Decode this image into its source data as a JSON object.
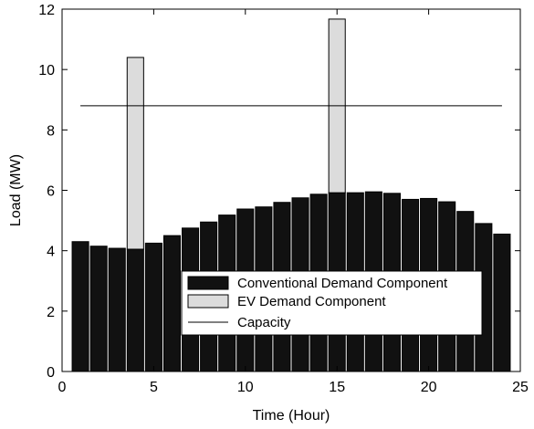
{
  "chart_data": {
    "type": "bar",
    "xlabel": "Time (Hour)",
    "ylabel": "Load (MW)",
    "xlim": [
      0,
      25
    ],
    "ylim": [
      0,
      12
    ],
    "xticks": [
      0,
      5,
      10,
      15,
      20,
      25
    ],
    "yticks": [
      0,
      2,
      4,
      6,
      8,
      10,
      12
    ],
    "x": [
      1,
      2,
      3,
      4,
      5,
      6,
      7,
      8,
      9,
      10,
      11,
      12,
      13,
      14,
      15,
      16,
      17,
      18,
      19,
      20,
      21,
      22,
      23,
      24
    ],
    "series": [
      {
        "name": "Conventional Demand Component",
        "color": "#111111",
        "values": [
          4.3,
          4.15,
          4.08,
          4.05,
          4.25,
          4.5,
          4.75,
          4.95,
          5.18,
          5.38,
          5.45,
          5.6,
          5.75,
          5.87,
          5.92,
          5.92,
          5.95,
          5.9,
          5.7,
          5.73,
          5.62,
          5.3,
          4.9,
          4.55
        ]
      },
      {
        "name": "EV Demand Component",
        "color": "#dcdcdc",
        "values": [
          0,
          0,
          0,
          6.35,
          0,
          0,
          0,
          0,
          0,
          0,
          0,
          0,
          0,
          0,
          5.75,
          0,
          0,
          0,
          0,
          0,
          0,
          0,
          0,
          0
        ]
      }
    ],
    "lines": [
      {
        "name": "Capacity",
        "y": 8.8,
        "x_range": [
          1,
          24
        ],
        "color": "#000000"
      }
    ],
    "legend": {
      "placement": "bottom-center"
    },
    "grid": false
  }
}
